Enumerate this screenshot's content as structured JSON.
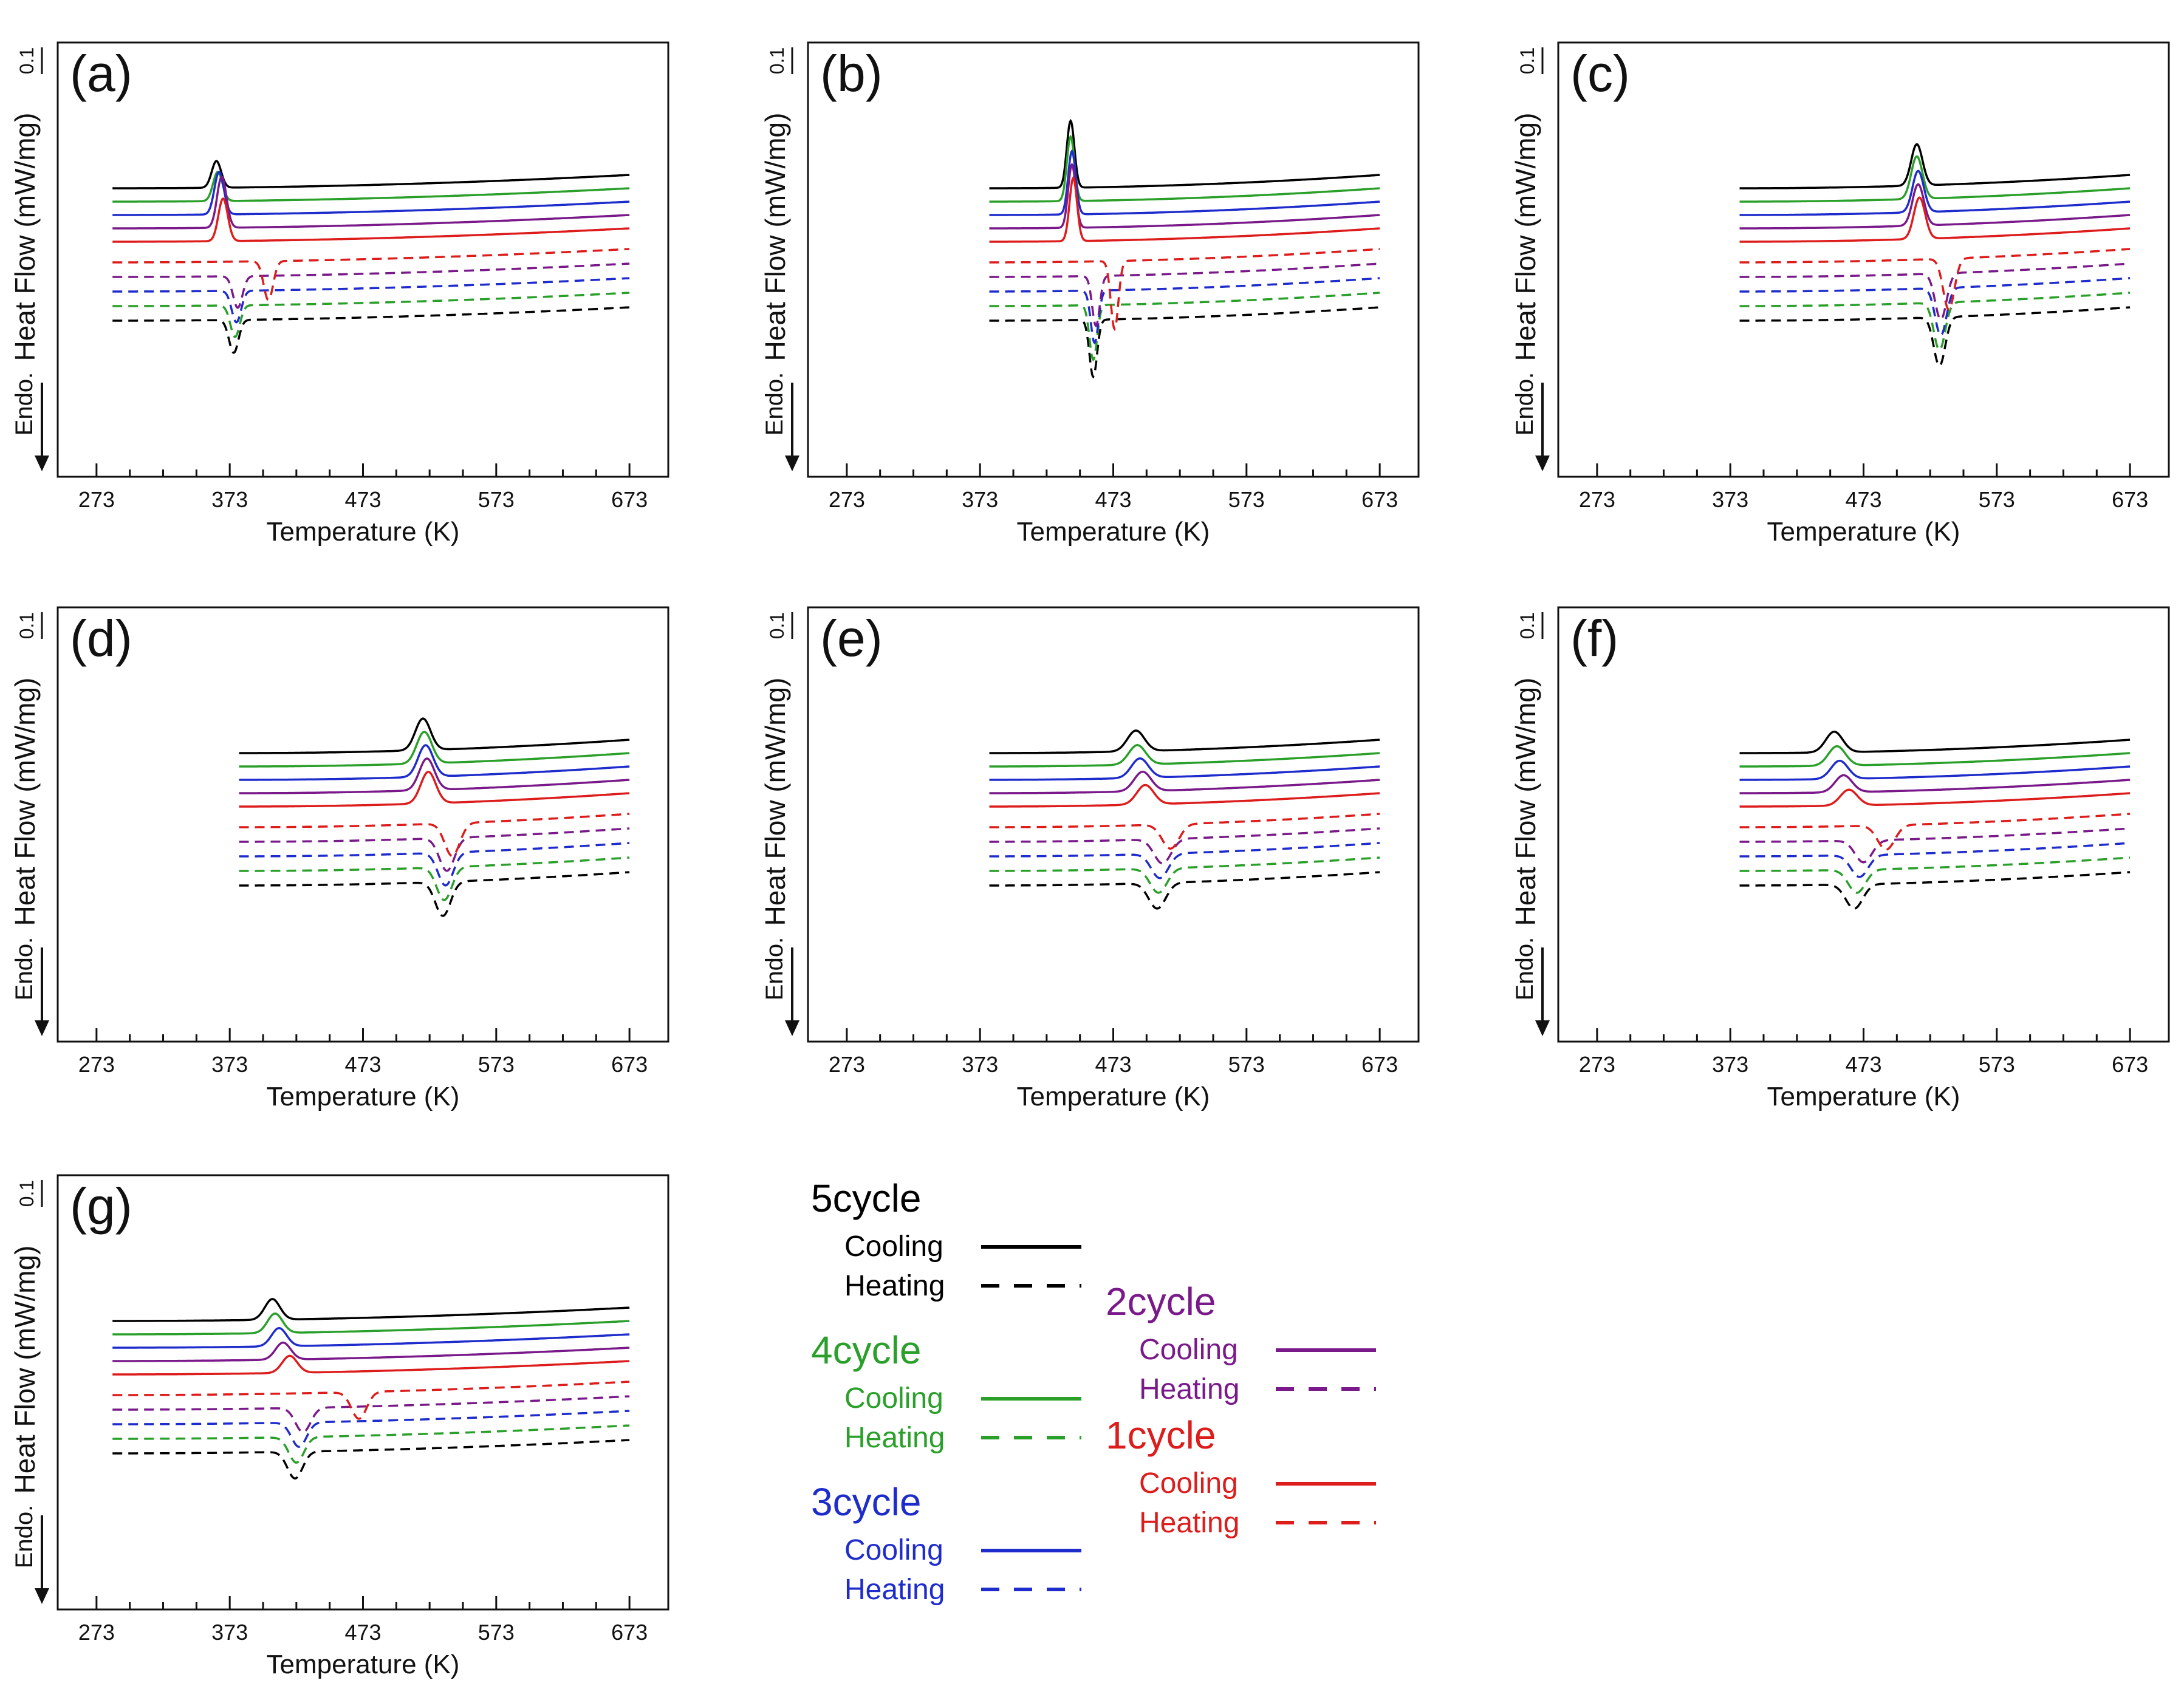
{
  "figure": {
    "legend": {
      "cooling_label": "Cooling",
      "heating_label": "Heating"
    }
  },
  "chart_data": [
    {
      "type": "line",
      "panel_label": "(a)",
      "xlabel": "Temperature (K)",
      "ylabel": "Heat Flow (mW/mg)",
      "endo_label": "Endo.",
      "scale_label": "0.1",
      "xlim": [
        253,
        693
      ],
      "x_ticks": [
        273,
        373,
        473,
        573,
        673
      ],
      "x_range": [
        285,
        673
      ],
      "peak_width": 5,
      "cooling_peaks": [
        {
          "cycle": "5cycle",
          "T": 363,
          "h": 2.2
        },
        {
          "cycle": "4cycle",
          "T": 364,
          "h": 2.4
        },
        {
          "cycle": "3cycle",
          "T": 365,
          "h": 3.5
        },
        {
          "cycle": "2cycle",
          "T": 367,
          "h": 4.2
        },
        {
          "cycle": "1cycle",
          "T": 368,
          "h": 3.5
        }
      ],
      "heating_dips": [
        {
          "cycle": "5cycle",
          "T": 376,
          "h": 2.7
        },
        {
          "cycle": "4cycle",
          "T": 377,
          "h": 2.6
        },
        {
          "cycle": "3cycle",
          "T": 378,
          "h": 2.6
        },
        {
          "cycle": "2cycle",
          "T": 379,
          "h": 2.6
        },
        {
          "cycle": "1cycle",
          "T": 402,
          "h": 3.2
        }
      ]
    },
    {
      "type": "line",
      "panel_label": "(b)",
      "xlabel": "Temperature (K)",
      "ylabel": "Heat Flow (mW/mg)",
      "endo_label": "Endo.",
      "scale_label": "0.1",
      "xlim": [
        253,
        693
      ],
      "x_ticks": [
        273,
        373,
        473,
        573,
        673
      ],
      "x_range": [
        380,
        673
      ],
      "peak_width": 4,
      "cooling_peaks": [
        {
          "cycle": "5cycle",
          "T": 441,
          "h": 5.5
        },
        {
          "cycle": "4cycle",
          "T": 441,
          "h": 5.3
        },
        {
          "cycle": "3cycle",
          "T": 442,
          "h": 5.2
        },
        {
          "cycle": "2cycle",
          "T": 442,
          "h": 5.2
        },
        {
          "cycle": "1cycle",
          "T": 443,
          "h": 5.2
        }
      ],
      "heating_dips": [
        {
          "cycle": "5cycle",
          "T": 458,
          "h": 4.7
        },
        {
          "cycle": "4cycle",
          "T": 458,
          "h": 4.5
        },
        {
          "cycle": "3cycle",
          "T": 459,
          "h": 4.3
        },
        {
          "cycle": "2cycle",
          "T": 460,
          "h": 4.1
        },
        {
          "cycle": "1cycle",
          "T": 474,
          "h": 5.6
        }
      ]
    },
    {
      "type": "line",
      "panel_label": "(c)",
      "xlabel": "Temperature (K)",
      "ylabel": "Heat Flow (mW/mg)",
      "endo_label": "Endo.",
      "scale_label": "0.1",
      "xlim": [
        253,
        693
      ],
      "x_ticks": [
        273,
        373,
        473,
        573,
        673
      ],
      "x_range": [
        380,
        673
      ],
      "peak_width": 6,
      "cooling_peaks": [
        {
          "cycle": "5cycle",
          "T": 513,
          "h": 3.4
        },
        {
          "cycle": "4cycle",
          "T": 513,
          "h": 3.5
        },
        {
          "cycle": "3cycle",
          "T": 514,
          "h": 3.4
        },
        {
          "cycle": "2cycle",
          "T": 514,
          "h": 3.4
        },
        {
          "cycle": "1cycle",
          "T": 515,
          "h": 3.4
        }
      ],
      "heating_dips": [
        {
          "cycle": "5cycle",
          "T": 530,
          "h": 4.0
        },
        {
          "cycle": "4cycle",
          "T": 530,
          "h": 3.9
        },
        {
          "cycle": "3cycle",
          "T": 531,
          "h": 3.9
        },
        {
          "cycle": "2cycle",
          "T": 531,
          "h": 3.8
        },
        {
          "cycle": "1cycle",
          "T": 537,
          "h": 4.2
        }
      ]
    },
    {
      "type": "line",
      "panel_label": "(d)",
      "xlabel": "Temperature (K)",
      "ylabel": "Heat Flow (mW/mg)",
      "endo_label": "Endo.",
      "scale_label": "0.1",
      "xlim": [
        253,
        693
      ],
      "x_ticks": [
        273,
        373,
        473,
        573,
        673
      ],
      "x_range": [
        380,
        673
      ],
      "peak_width": 8,
      "cooling_peaks": [
        {
          "cycle": "5cycle",
          "T": 518,
          "h": 2.6
        },
        {
          "cycle": "4cycle",
          "T": 519,
          "h": 2.6
        },
        {
          "cycle": "3cycle",
          "T": 520,
          "h": 2.6
        },
        {
          "cycle": "2cycle",
          "T": 521,
          "h": 2.6
        },
        {
          "cycle": "1cycle",
          "T": 522,
          "h": 2.6
        }
      ],
      "heating_dips": [
        {
          "cycle": "5cycle",
          "T": 533,
          "h": 2.8
        },
        {
          "cycle": "4cycle",
          "T": 534,
          "h": 2.7
        },
        {
          "cycle": "3cycle",
          "T": 535,
          "h": 2.7
        },
        {
          "cycle": "2cycle",
          "T": 536,
          "h": 2.7
        },
        {
          "cycle": "1cycle",
          "T": 540,
          "h": 2.7
        }
      ]
    },
    {
      "type": "line",
      "panel_label": "(e)",
      "xlabel": "Temperature (K)",
      "ylabel": "Heat Flow (mW/mg)",
      "endo_label": "Endo.",
      "scale_label": "0.1",
      "xlim": [
        253,
        693
      ],
      "x_ticks": [
        273,
        373,
        473,
        573,
        673
      ],
      "x_range": [
        380,
        673
      ],
      "peak_width": 9,
      "cooling_peaks": [
        {
          "cycle": "5cycle",
          "T": 490,
          "h": 1.7
        },
        {
          "cycle": "4cycle",
          "T": 491,
          "h": 1.6
        },
        {
          "cycle": "3cycle",
          "T": 493,
          "h": 1.6
        },
        {
          "cycle": "2cycle",
          "T": 495,
          "h": 1.6
        },
        {
          "cycle": "1cycle",
          "T": 497,
          "h": 1.6
        }
      ],
      "heating_dips": [
        {
          "cycle": "5cycle",
          "T": 506,
          "h": 2.1
        },
        {
          "cycle": "4cycle",
          "T": 507,
          "h": 2.0
        },
        {
          "cycle": "3cycle",
          "T": 508,
          "h": 2.0
        },
        {
          "cycle": "2cycle",
          "T": 510,
          "h": 2.0
        },
        {
          "cycle": "1cycle",
          "T": 516,
          "h": 2.0
        }
      ]
    },
    {
      "type": "line",
      "panel_label": "(f)",
      "xlabel": "Temperature (K)",
      "ylabel": "Heat Flow (mW/mg)",
      "endo_label": "Endo.",
      "scale_label": "0.1",
      "xlim": [
        253,
        693
      ],
      "x_ticks": [
        273,
        373,
        473,
        573,
        673
      ],
      "x_range": [
        380,
        673
      ],
      "peak_width": 9,
      "cooling_peaks": [
        {
          "cycle": "5cycle",
          "T": 451,
          "h": 1.7
        },
        {
          "cycle": "4cycle",
          "T": 453,
          "h": 1.6
        },
        {
          "cycle": "3cycle",
          "T": 455,
          "h": 1.5
        },
        {
          "cycle": "2cycle",
          "T": 458,
          "h": 1.4
        },
        {
          "cycle": "1cycle",
          "T": 462,
          "h": 1.3
        }
      ],
      "heating_dips": [
        {
          "cycle": "5cycle",
          "T": 466,
          "h": 2.0
        },
        {
          "cycle": "4cycle",
          "T": 468,
          "h": 1.9
        },
        {
          "cycle": "3cycle",
          "T": 470,
          "h": 1.8
        },
        {
          "cycle": "2cycle",
          "T": 473,
          "h": 1.8
        },
        {
          "cycle": "1cycle",
          "T": 490,
          "h": 2.0
        }
      ]
    },
    {
      "type": "line",
      "panel_label": "(g)",
      "xlabel": "Temperature (K)",
      "ylabel": "Heat Flow (mW/mg)",
      "endo_label": "Endo.",
      "scale_label": "0.1",
      "xlim": [
        253,
        693
      ],
      "x_ticks": [
        273,
        373,
        473,
        573,
        673
      ],
      "x_range": [
        285,
        673
      ],
      "peak_width": 8,
      "cooling_peaks": [
        {
          "cycle": "5cycle",
          "T": 405,
          "h": 1.7
        },
        {
          "cycle": "4cycle",
          "T": 407,
          "h": 1.6
        },
        {
          "cycle": "3cycle",
          "T": 410,
          "h": 1.5
        },
        {
          "cycle": "2cycle",
          "T": 413,
          "h": 1.4
        },
        {
          "cycle": "1cycle",
          "T": 418,
          "h": 1.4
        }
      ],
      "heating_dips": [
        {
          "cycle": "5cycle",
          "T": 422,
          "h": 2.2
        },
        {
          "cycle": "4cycle",
          "T": 423,
          "h": 2.1
        },
        {
          "cycle": "3cycle",
          "T": 425,
          "h": 2.0
        },
        {
          "cycle": "2cycle",
          "T": 428,
          "h": 2.0
        },
        {
          "cycle": "1cycle",
          "T": 470,
          "h": 2.2
        }
      ]
    }
  ],
  "legend_groups": [
    {
      "name": "5cycle",
      "color": "#000000"
    },
    {
      "name": "4cycle",
      "color": "#2aa02a"
    },
    {
      "name": "3cycle",
      "color": "#1f2ccc"
    },
    {
      "name": "2cycle",
      "color": "#7a1a8a"
    },
    {
      "name": "1cycle",
      "color": "#dd1c1c"
    }
  ]
}
